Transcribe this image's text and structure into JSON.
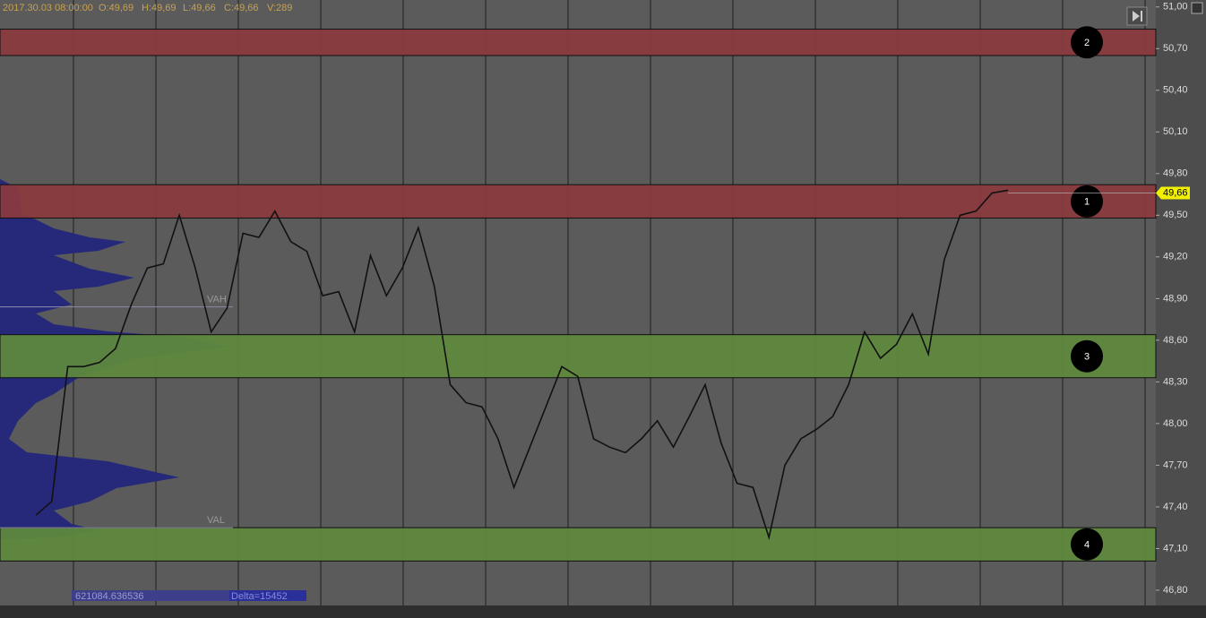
{
  "chart_data": {
    "type": "line",
    "header": {
      "time": "2017.30.03 08:00:00",
      "open": "O:49,69",
      "high": "H:49,69",
      "low": "L:49,66",
      "close": "C:49,66",
      "volume": "V:289"
    },
    "ylim": [
      46.69,
      51.05
    ],
    "yticks": [
      {
        "value": 51.0,
        "label": "51,00"
      },
      {
        "value": 50.7,
        "label": "50,70"
      },
      {
        "value": 50.4,
        "label": "50,40"
      },
      {
        "value": 50.1,
        "label": "50,10"
      },
      {
        "value": 49.8,
        "label": "49,80"
      },
      {
        "value": 49.5,
        "label": "49,50"
      },
      {
        "value": 49.2,
        "label": "49,20"
      },
      {
        "value": 48.9,
        "label": "48,90"
      },
      {
        "value": 48.6,
        "label": "48,60"
      },
      {
        "value": 48.3,
        "label": "48,30"
      },
      {
        "value": 48.0,
        "label": "48,00"
      },
      {
        "value": 47.7,
        "label": "47,70"
      },
      {
        "value": 47.4,
        "label": "47,40"
      },
      {
        "value": 47.1,
        "label": "47,10"
      },
      {
        "value": 46.8,
        "label": "46,80"
      }
    ],
    "series": [
      {
        "color": "#111111",
        "values": [
          47.34,
          47.44,
          48.41,
          48.41,
          48.44,
          48.54,
          48.86,
          49.12,
          49.15,
          49.5,
          49.12,
          48.66,
          48.83,
          49.37,
          49.34,
          49.53,
          49.31,
          49.24,
          48.92,
          48.95,
          48.66,
          49.21,
          48.92,
          49.12,
          49.41,
          48.99,
          48.28,
          48.15,
          48.12,
          47.89,
          47.54,
          47.83,
          48.12,
          48.41,
          48.34,
          47.89,
          47.83,
          47.79,
          47.89,
          48.02,
          47.83,
          48.05,
          48.28,
          47.86,
          47.57,
          47.54,
          47.18,
          47.7,
          47.89,
          47.96,
          48.05,
          48.28,
          48.66,
          48.47,
          48.57,
          48.79,
          48.5,
          49.18,
          49.5,
          49.53,
          49.66,
          49.68
        ]
      }
    ],
    "zones": [
      {
        "label": "1",
        "low": 49.48,
        "high": 49.72,
        "color": "#8b3a3e"
      },
      {
        "label": "2",
        "low": 50.65,
        "high": 50.84,
        "color": "#8b3a3e"
      },
      {
        "label": "3",
        "low": 48.33,
        "high": 48.64,
        "color": "#5e8a3c"
      },
      {
        "label": "4",
        "low": 47.01,
        "high": 47.25,
        "color": "#5e8a3c"
      }
    ],
    "value_area": [
      {
        "label": "VAH",
        "value": 48.84
      },
      {
        "label": "VAL",
        "value": 47.25
      }
    ],
    "last_price": {
      "value": 49.66,
      "label": "49,66"
    },
    "footer": {
      "volume": "621084.636536",
      "delta": "Delta=15452"
    }
  }
}
